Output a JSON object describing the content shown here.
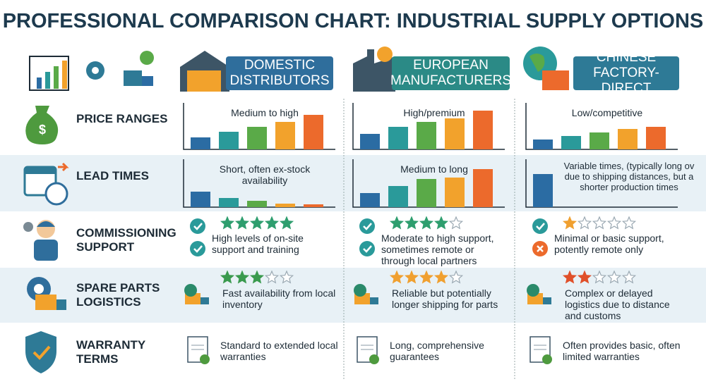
{
  "title": "PROFESSIONAL COMPARISON CHART: INDUSTRIAL SUPPLY OPTIONS",
  "columns": [
    {
      "name": "DOMESTIC DISTRIBUTORS",
      "color": "#2f6e9c"
    },
    {
      "name": "EUROPEAN MANUFACTURERS",
      "color": "#2b8a86"
    },
    {
      "name": "CHINESE FACTORY-DIRECT",
      "color": "#2e7a96"
    }
  ],
  "bar_colors": [
    "#2b6ca3",
    "#2a9a9a",
    "#5aaa48",
    "#f2a22c",
    "#ec6a2c"
  ],
  "rows": [
    {
      "label": "PRICE RANGES",
      "cells": [
        {
          "text": "Medium to high",
          "bars": [
            17,
            25,
            32,
            39,
            49
          ]
        },
        {
          "text": "High/premium",
          "bars": [
            22,
            32,
            39,
            44,
            55
          ]
        },
        {
          "text": "Low/competitive",
          "bars": [
            14,
            19,
            24,
            29,
            32
          ]
        }
      ]
    },
    {
      "label": "LEAD TIMES",
      "cells": [
        {
          "text": "Short, often ex-stock availability",
          "bars": [
            22,
            13,
            9,
            5,
            4
          ]
        },
        {
          "text": "Medium to long",
          "bars": [
            20,
            30,
            40,
            42,
            54
          ]
        },
        {
          "text": "Variable times, (typically long ov due to shipping distances, but a shorter production times",
          "bars": [
            47
          ]
        }
      ]
    },
    {
      "label": "COMMISSIONING SUPPORT",
      "cells": [
        {
          "text": "High levels of on-site support and training",
          "rating": 5,
          "star_color": "#2e9e6e"
        },
        {
          "text": "Moderate to high support, sometimes remote or through local partners",
          "rating": 4,
          "star_color": "#2e9e6e"
        },
        {
          "text": "Minimal or basic support, potently remote only",
          "rating": 1,
          "star_color": "#f0a030"
        }
      ]
    },
    {
      "label": "SPARE PARTS LOGISTICS",
      "cells": [
        {
          "text": "Fast availability from local inventory",
          "rating": 3,
          "star_color": "#3a9a4e"
        },
        {
          "text": "Reliable but potentially longer shipping for parts",
          "rating": 4,
          "star_color": "#f0a030"
        },
        {
          "text": "Complex or delayed logistics due to distance and customs",
          "rating": 2,
          "star_color": "#e0502a"
        }
      ]
    },
    {
      "label": "WARRANTY TERMS",
      "cells": [
        {
          "text": "Standard to extended local warranties"
        },
        {
          "text": "Long, comprehensive guarantees"
        },
        {
          "text": "Often provides basic, often limited warranties"
        }
      ]
    }
  ]
}
